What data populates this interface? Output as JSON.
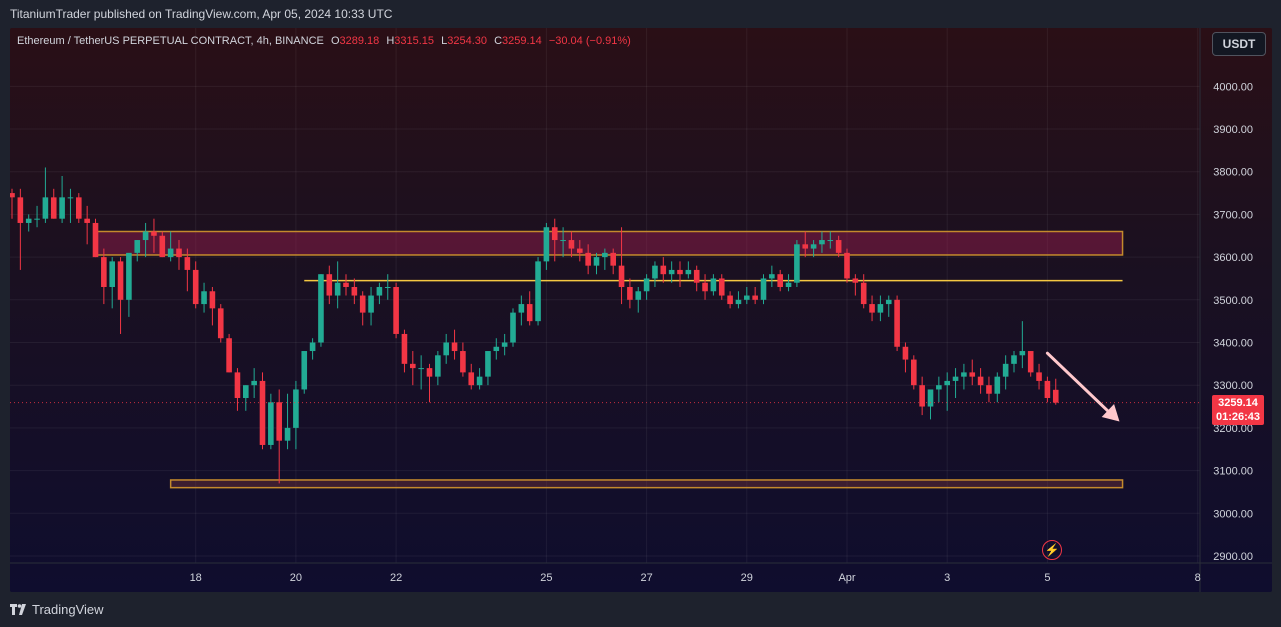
{
  "header": {
    "publisher_line": "TitaniumTrader published on TradingView.com, Apr 05, 2024 10:33 UTC"
  },
  "legend": {
    "symbol": "Ethereum / TetherUS PERPETUAL CONTRACT, 4h, BINANCE",
    "open_key": "O",
    "open_val": "3289.18",
    "high_key": "H",
    "high_val": "3315.15",
    "low_key": "L",
    "low_val": "3254.30",
    "close_key": "C",
    "close_val": "3259.14",
    "change": "−30.04 (−0.91%)"
  },
  "currency_button": "USDT",
  "price_label": {
    "price": "3259.14",
    "countdown": "01:26:43"
  },
  "footer": {
    "brand": "TradingView"
  },
  "colors": {
    "up": "#22ab94",
    "down": "#f23645",
    "zone": "#c48a2c",
    "level": "#f5c842",
    "arrow": "#ffc8cc"
  },
  "chart_data": {
    "type": "candlestick",
    "title": "Ethereum / TetherUS PERPETUAL CONTRACT, 4h, BINANCE",
    "y_axis": {
      "min": 2850,
      "max": 4080,
      "ticks": [
        "2900.00",
        "3000.00",
        "3100.00",
        "3200.00",
        "3300.00",
        "3400.00",
        "3500.00",
        "3600.00",
        "3700.00",
        "3800.00",
        "3900.00",
        "4000.00"
      ]
    },
    "x_axis": {
      "bar_interval": "4h",
      "ticks": [
        {
          "label": "18",
          "bar": 22
        },
        {
          "label": "20",
          "bar": 34
        },
        {
          "label": "22",
          "bar": 46
        },
        {
          "label": "25",
          "bar": 64
        },
        {
          "label": "27",
          "bar": 76
        },
        {
          "label": "29",
          "bar": 88
        },
        {
          "label": "Apr",
          "bar": 100
        },
        {
          "label": "3",
          "bar": 112
        },
        {
          "label": "5",
          "bar": 124
        },
        {
          "label": "8",
          "bar": 142
        }
      ]
    },
    "last_price": 3259.14,
    "zones": [
      {
        "name": "resistance-zone",
        "from_bar": 10,
        "to_bar": 133,
        "low": 3605,
        "high": 3660
      },
      {
        "name": "support-zone",
        "from_bar": 19,
        "to_bar": 133,
        "low": 3060,
        "high": 3078
      }
    ],
    "levels": [
      {
        "name": "horizontal-level",
        "from_bar": 35,
        "to_bar": 133,
        "price": 3545
      }
    ],
    "projection_arrow": {
      "from_bar": 124,
      "from_price": 3375,
      "to_bar": 130,
      "to_price": 3215
    },
    "ohlc": [
      [
        3750,
        3760,
        3690,
        3740
      ],
      [
        3740,
        3760,
        3570,
        3680
      ],
      [
        3680,
        3700,
        3660,
        3690
      ],
      [
        3690,
        3720,
        3670,
        3690
      ],
      [
        3690,
        3810,
        3680,
        3740
      ],
      [
        3740,
        3760,
        3690,
        3690
      ],
      [
        3690,
        3790,
        3680,
        3740
      ],
      [
        3740,
        3760,
        3680,
        3740
      ],
      [
        3740,
        3750,
        3680,
        3690
      ],
      [
        3690,
        3720,
        3630,
        3680
      ],
      [
        3680,
        3690,
        3600,
        3600
      ],
      [
        3600,
        3620,
        3490,
        3530
      ],
      [
        3530,
        3600,
        3480,
        3590
      ],
      [
        3590,
        3600,
        3420,
        3500
      ],
      [
        3500,
        3600,
        3460,
        3610
      ],
      [
        3610,
        3640,
        3590,
        3640
      ],
      [
        3640,
        3680,
        3600,
        3660
      ],
      [
        3660,
        3690,
        3610,
        3650
      ],
      [
        3650,
        3660,
        3600,
        3600
      ],
      [
        3600,
        3660,
        3590,
        3620
      ],
      [
        3620,
        3640,
        3570,
        3600
      ],
      [
        3600,
        3620,
        3520,
        3570
      ],
      [
        3570,
        3590,
        3480,
        3490
      ],
      [
        3490,
        3540,
        3470,
        3520
      ],
      [
        3520,
        3530,
        3440,
        3480
      ],
      [
        3480,
        3490,
        3400,
        3410
      ],
      [
        3410,
        3420,
        3330,
        3330
      ],
      [
        3330,
        3340,
        3240,
        3270
      ],
      [
        3270,
        3300,
        3240,
        3300
      ],
      [
        3300,
        3340,
        3270,
        3310
      ],
      [
        3310,
        3330,
        3150,
        3160
      ],
      [
        3160,
        3280,
        3150,
        3260
      ],
      [
        3260,
        3290,
        3070,
        3170
      ],
      [
        3170,
        3280,
        3150,
        3200
      ],
      [
        3200,
        3310,
        3150,
        3290
      ],
      [
        3290,
        3380,
        3280,
        3380
      ],
      [
        3380,
        3410,
        3360,
        3400
      ],
      [
        3400,
        3560,
        3390,
        3560
      ],
      [
        3560,
        3580,
        3490,
        3510
      ],
      [
        3510,
        3590,
        3480,
        3540
      ],
      [
        3540,
        3560,
        3510,
        3530
      ],
      [
        3530,
        3550,
        3490,
        3510
      ],
      [
        3510,
        3520,
        3440,
        3470
      ],
      [
        3470,
        3530,
        3440,
        3510
      ],
      [
        3510,
        3540,
        3490,
        3530
      ],
      [
        3530,
        3560,
        3500,
        3530
      ],
      [
        3530,
        3540,
        3410,
        3420
      ],
      [
        3420,
        3430,
        3330,
        3350
      ],
      [
        3350,
        3380,
        3300,
        3340
      ],
      [
        3340,
        3370,
        3290,
        3340
      ],
      [
        3340,
        3350,
        3260,
        3320
      ],
      [
        3320,
        3380,
        3300,
        3370
      ],
      [
        3370,
        3420,
        3350,
        3400
      ],
      [
        3400,
        3430,
        3360,
        3380
      ],
      [
        3380,
        3400,
        3320,
        3330
      ],
      [
        3330,
        3350,
        3290,
        3300
      ],
      [
        3300,
        3340,
        3290,
        3320
      ],
      [
        3320,
        3380,
        3300,
        3380
      ],
      [
        3380,
        3410,
        3360,
        3390
      ],
      [
        3390,
        3420,
        3370,
        3400
      ],
      [
        3400,
        3480,
        3390,
        3470
      ],
      [
        3470,
        3510,
        3440,
        3490
      ],
      [
        3490,
        3520,
        3440,
        3450
      ],
      [
        3450,
        3600,
        3440,
        3590
      ],
      [
        3590,
        3680,
        3570,
        3670
      ],
      [
        3670,
        3690,
        3590,
        3640
      ],
      [
        3640,
        3670,
        3600,
        3640
      ],
      [
        3640,
        3660,
        3600,
        3620
      ],
      [
        3620,
        3640,
        3590,
        3610
      ],
      [
        3610,
        3630,
        3560,
        3580
      ],
      [
        3580,
        3610,
        3560,
        3600
      ],
      [
        3600,
        3620,
        3570,
        3610
      ],
      [
        3610,
        3620,
        3560,
        3580
      ],
      [
        3580,
        3670,
        3490,
        3530
      ],
      [
        3530,
        3550,
        3480,
        3500
      ],
      [
        3500,
        3530,
        3470,
        3520
      ],
      [
        3520,
        3560,
        3500,
        3550
      ],
      [
        3550,
        3590,
        3530,
        3580
      ],
      [
        3580,
        3600,
        3540,
        3560
      ],
      [
        3560,
        3590,
        3540,
        3570
      ],
      [
        3570,
        3590,
        3530,
        3560
      ],
      [
        3560,
        3590,
        3550,
        3570
      ],
      [
        3570,
        3580,
        3520,
        3540
      ],
      [
        3540,
        3560,
        3500,
        3520
      ],
      [
        3520,
        3560,
        3510,
        3550
      ],
      [
        3550,
        3560,
        3500,
        3510
      ],
      [
        3510,
        3520,
        3480,
        3490
      ],
      [
        3490,
        3520,
        3480,
        3500
      ],
      [
        3500,
        3530,
        3490,
        3510
      ],
      [
        3510,
        3530,
        3490,
        3500
      ],
      [
        3500,
        3560,
        3490,
        3550
      ],
      [
        3550,
        3580,
        3530,
        3560
      ],
      [
        3560,
        3570,
        3520,
        3530
      ],
      [
        3530,
        3560,
        3520,
        3540
      ],
      [
        3540,
        3640,
        3530,
        3630
      ],
      [
        3630,
        3660,
        3600,
        3620
      ],
      [
        3620,
        3640,
        3600,
        3630
      ],
      [
        3630,
        3660,
        3610,
        3640
      ],
      [
        3640,
        3660,
        3620,
        3640
      ],
      [
        3640,
        3650,
        3600,
        3610
      ],
      [
        3610,
        3620,
        3540,
        3550
      ],
      [
        3550,
        3560,
        3510,
        3540
      ],
      [
        3540,
        3560,
        3480,
        3490
      ],
      [
        3490,
        3510,
        3450,
        3470
      ],
      [
        3470,
        3510,
        3450,
        3490
      ],
      [
        3490,
        3510,
        3460,
        3500
      ],
      [
        3500,
        3510,
        3380,
        3390
      ],
      [
        3390,
        3400,
        3330,
        3360
      ],
      [
        3360,
        3370,
        3290,
        3300
      ],
      [
        3300,
        3320,
        3230,
        3250
      ],
      [
        3250,
        3290,
        3220,
        3290
      ],
      [
        3290,
        3320,
        3260,
        3300
      ],
      [
        3300,
        3330,
        3240,
        3310
      ],
      [
        3310,
        3340,
        3270,
        3320
      ],
      [
        3320,
        3350,
        3290,
        3330
      ],
      [
        3330,
        3360,
        3300,
        3320
      ],
      [
        3320,
        3340,
        3280,
        3300
      ],
      [
        3300,
        3320,
        3260,
        3280
      ],
      [
        3280,
        3330,
        3260,
        3320
      ],
      [
        3320,
        3370,
        3290,
        3350
      ],
      [
        3350,
        3380,
        3330,
        3370
      ],
      [
        3370,
        3450,
        3340,
        3380
      ],
      [
        3380,
        3380,
        3320,
        3330
      ],
      [
        3330,
        3350,
        3290,
        3310
      ],
      [
        3310,
        3320,
        3260,
        3270
      ],
      [
        3289.18,
        3315.15,
        3254.3,
        3259.14
      ]
    ]
  }
}
